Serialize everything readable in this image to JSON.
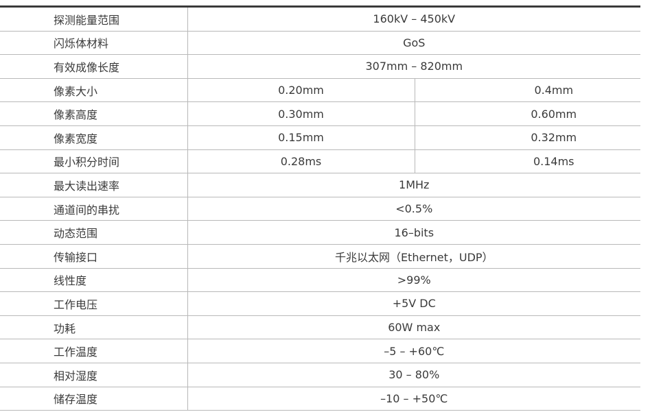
{
  "rows": [
    {
      "label": "探测能量范围",
      "value": "160kV – 450kV"
    },
    {
      "label": "闪烁体材料",
      "value": "GoS"
    },
    {
      "label": "有效成像长度",
      "value": "307mm – 820mm"
    },
    {
      "label": "像素大小",
      "values": [
        "0.20mm",
        "0.4mm"
      ]
    },
    {
      "label": "像素高度",
      "values": [
        "0.30mm",
        "0.60mm"
      ]
    },
    {
      "label": "像素宽度",
      "values": [
        "0.15mm",
        "0.32mm"
      ]
    },
    {
      "label": "最小积分时间",
      "values": [
        "0.28ms",
        "0.14ms"
      ]
    },
    {
      "label": "最大读出速率",
      "value": "1MHz"
    },
    {
      "label": "通道间的串扰",
      "value": "<0.5%"
    },
    {
      "label": "动态范围",
      "value": "16–bits"
    },
    {
      "label": "传输接口",
      "value": "千兆以太网（Ethernet，UDP）"
    },
    {
      "label": "线性度",
      "value": ">99%"
    },
    {
      "label": "工作电压",
      "value": "+5V DC"
    },
    {
      "label": "功耗",
      "value": "60W max"
    },
    {
      "label": "工作温度",
      "value": "–5 – +60℃"
    },
    {
      "label": "相对湿度",
      "value": "30 – 80%"
    },
    {
      "label": "储存温度",
      "value": "–10 – +50℃"
    }
  ]
}
